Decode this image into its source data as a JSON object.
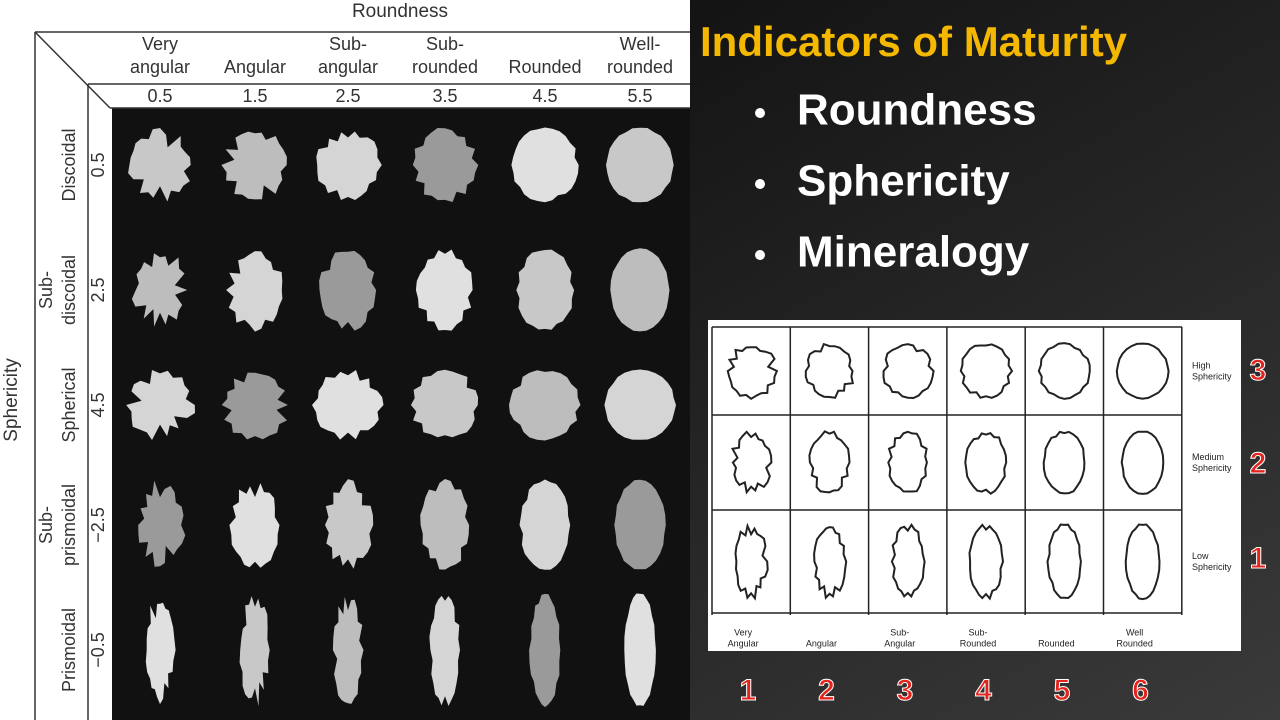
{
  "left_figure": {
    "x_axis_title": "Roundness",
    "y_axis_title": "Sphericity",
    "columns": [
      {
        "label": [
          "Very",
          "angular"
        ],
        "value": "0.5"
      },
      {
        "label": [
          "Angular"
        ],
        "value": "1.5"
      },
      {
        "label": [
          "Sub-",
          "angular"
        ],
        "value": "2.5"
      },
      {
        "label": [
          "Sub-",
          "rounded"
        ],
        "value": "3.5"
      },
      {
        "label": [
          "Rounded"
        ],
        "value": "4.5"
      },
      {
        "label": [
          "Well-",
          "rounded"
        ],
        "value": "5.5"
      }
    ],
    "rows": [
      {
        "label": [
          "Discoidal"
        ],
        "value": "0.5"
      },
      {
        "label": [
          "Sub-",
          "discoidal"
        ],
        "value": "2.5"
      },
      {
        "label": [
          "Spherical"
        ],
        "value": "4.5"
      },
      {
        "label": [
          "Sub-",
          "prismoidal"
        ],
        "value": "−2.5"
      },
      {
        "label": [
          "Prismoidal"
        ],
        "value": "−0.5"
      }
    ]
  },
  "title": "Indicators of Maturity",
  "bullets": [
    "Roundness",
    "Sphericity",
    "Mineralogy"
  ],
  "right_figure": {
    "rows": [
      {
        "label": [
          "High",
          "Sphericity"
        ],
        "number": 3
      },
      {
        "label": [
          "Medium",
          "Sphericity"
        ],
        "number": 2
      },
      {
        "label": [
          "Low",
          "Sphericity"
        ],
        "number": 1
      }
    ],
    "columns": [
      {
        "label": [
          "Very",
          "Angular"
        ],
        "number": 1
      },
      {
        "label": [
          "Angular"
        ],
        "number": 2
      },
      {
        "label": [
          "Sub-",
          "Angular"
        ],
        "number": 3
      },
      {
        "label": [
          "Sub-",
          "Rounded"
        ],
        "number": 4
      },
      {
        "label": [
          "Rounded"
        ],
        "number": 5
      },
      {
        "label": [
          "Well",
          "Rounded"
        ],
        "number": 6
      }
    ]
  }
}
